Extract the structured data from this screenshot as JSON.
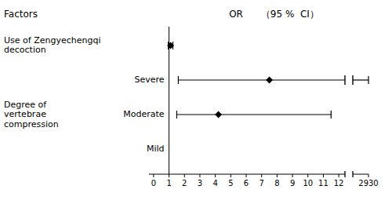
{
  "chart_data": {
    "type": "forest",
    "headers": [
      "Factors",
      "OR      （95 %  CI）"
    ],
    "rows": [
      {
        "label": "Use of Zengyechengqi\ndecoction",
        "sublabel": null,
        "or": 1.1,
        "ci_low": 0.95,
        "ci_high": 1.25
      },
      {
        "label": null,
        "sublabel": "Severe",
        "or": 7.5,
        "ci_low": 1.6,
        "ci_high": 2930
      },
      {
        "label": "Degree of\nvertebrae\ncompression",
        "sublabel": "Moderate",
        "or": 4.2,
        "ci_low": 1.5,
        "ci_high": 11.5
      },
      {
        "label": null,
        "sublabel": "Mild",
        "or": null,
        "ci_low": null,
        "ci_high": null
      }
    ],
    "ref_line": 1.0,
    "xlim": [
      -0.3,
      12.4
    ],
    "xticks": [
      0,
      1,
      2,
      3,
      4,
      5,
      6,
      7,
      8,
      9,
      10,
      11,
      12
    ],
    "xbreak_ticks": [
      2930
    ],
    "color": "#000000"
  }
}
